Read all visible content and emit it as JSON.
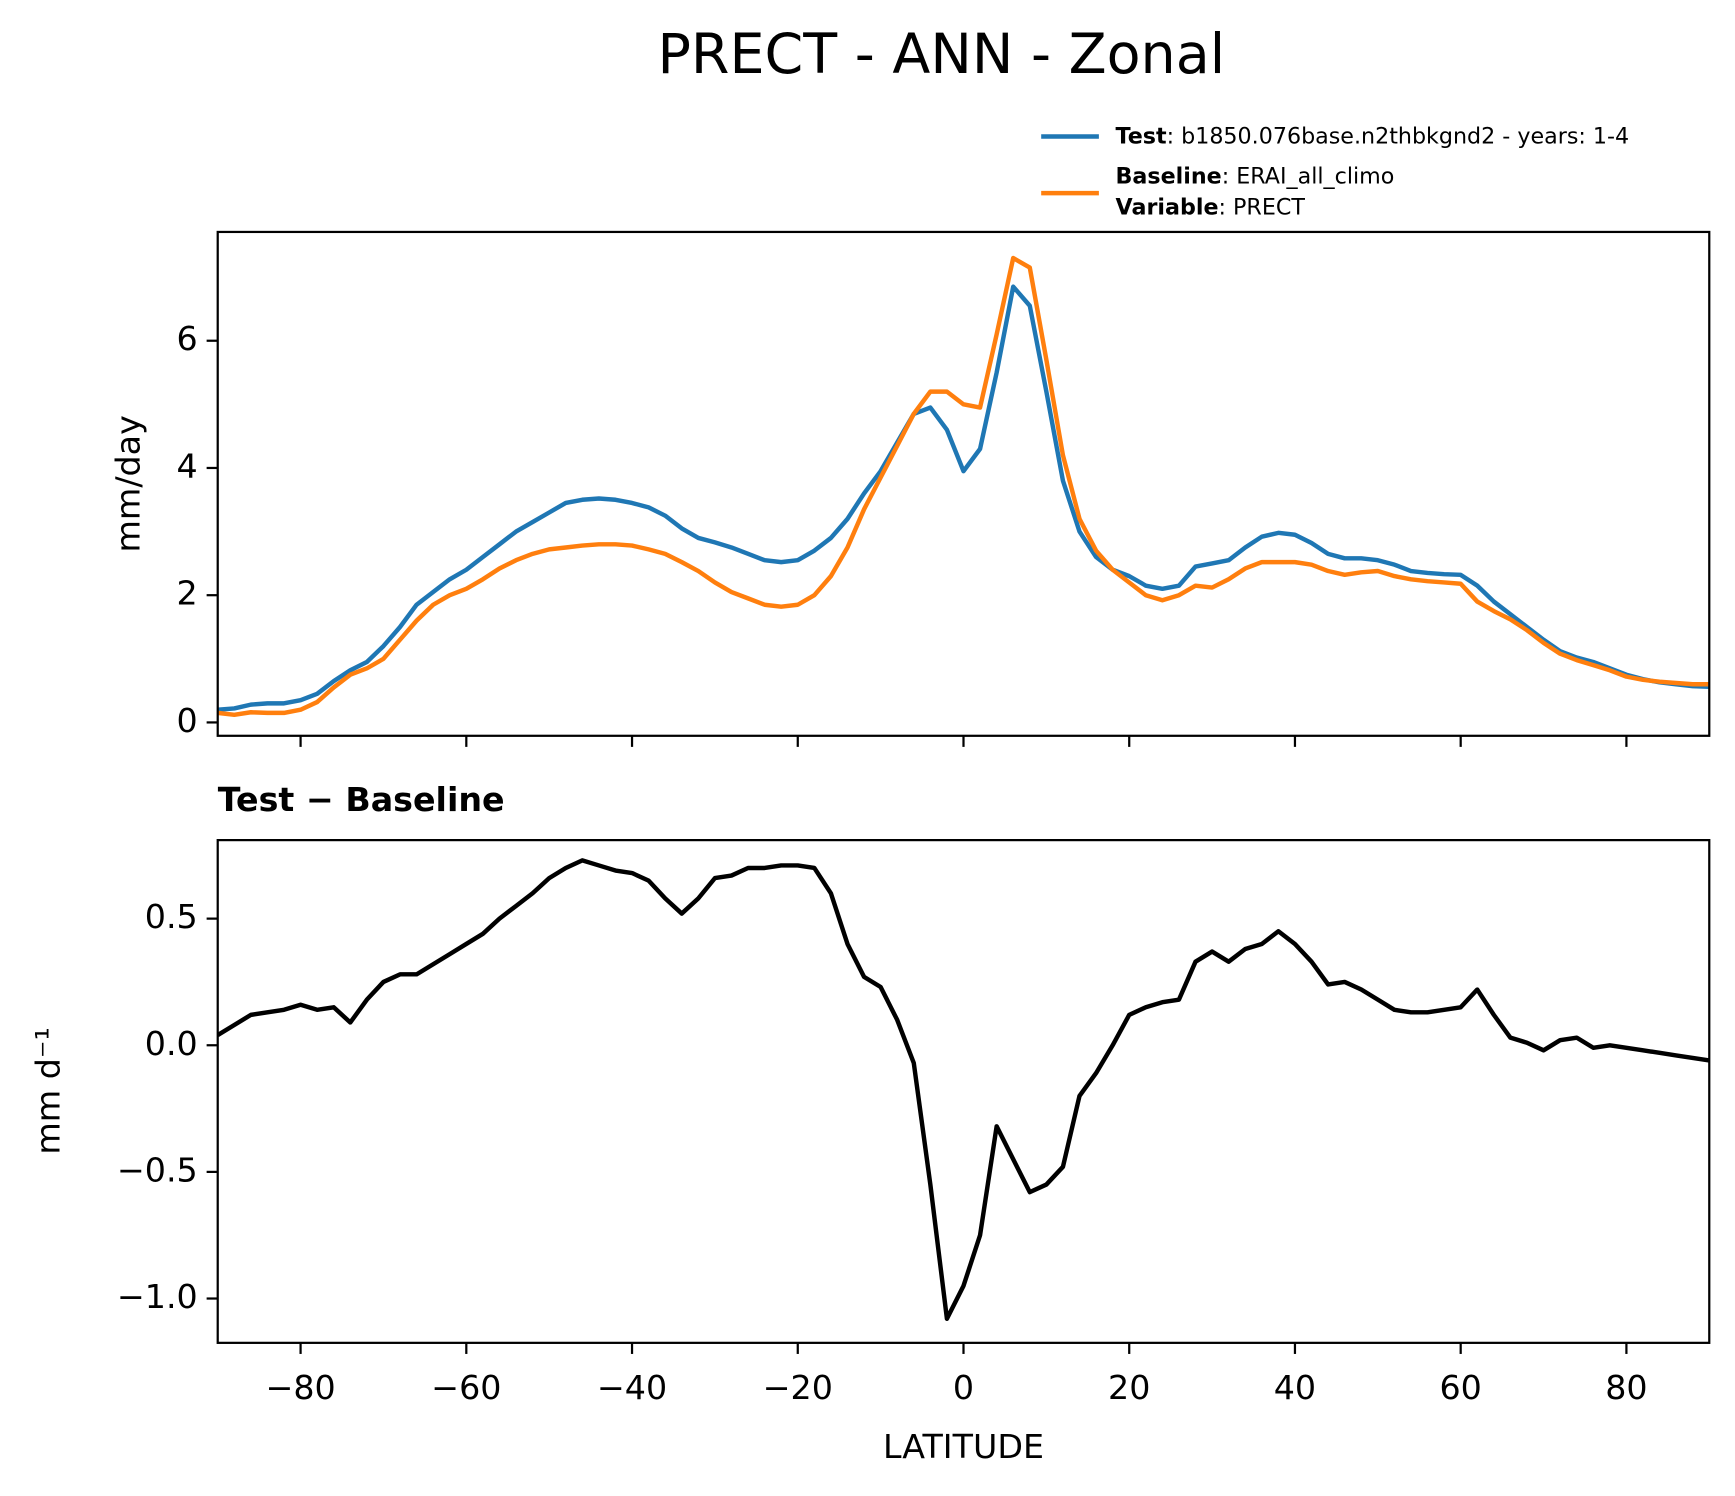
{
  "chart_data": [
    {
      "type": "line",
      "title": "PRECT - ANN - Zonal",
      "ylabel": "mm/day",
      "legend": "upper right",
      "x": [
        -90,
        -88,
        -86,
        -84,
        -82,
        -80,
        -78,
        -76,
        -74,
        -72,
        -70,
        -68,
        -66,
        -64,
        -62,
        -60,
        -58,
        -56,
        -54,
        -52,
        -50,
        -48,
        -46,
        -44,
        -42,
        -40,
        -38,
        -36,
        -34,
        -32,
        -30,
        -28,
        -26,
        -24,
        -22,
        -20,
        -18,
        -16,
        -14,
        -12,
        -10,
        -8,
        -6,
        -4,
        -2,
        0,
        2,
        4,
        6,
        8,
        10,
        12,
        14,
        16,
        18,
        20,
        22,
        24,
        26,
        28,
        30,
        32,
        34,
        36,
        38,
        40,
        42,
        44,
        46,
        48,
        50,
        52,
        54,
        56,
        58,
        60,
        62,
        64,
        66,
        68,
        70,
        72,
        74,
        76,
        78,
        80,
        82,
        84,
        86,
        88,
        90
      ],
      "series": [
        {
          "name": "Test",
          "label": ": b1850.076base.n2thbkgnd2 - years: 1-4",
          "color": "#1f77b4",
          "values": [
            0.2,
            0.22,
            0.28,
            0.3,
            0.3,
            0.35,
            0.45,
            0.65,
            0.82,
            0.95,
            1.2,
            1.5,
            1.85,
            2.05,
            2.25,
            2.4,
            2.6,
            2.8,
            3.0,
            3.15,
            3.3,
            3.45,
            3.5,
            3.52,
            3.5,
            3.45,
            3.38,
            3.25,
            3.05,
            2.9,
            2.83,
            2.75,
            2.65,
            2.55,
            2.52,
            2.55,
            2.7,
            2.9,
            3.2,
            3.6,
            3.95,
            4.4,
            4.85,
            4.95,
            4.6,
            3.95,
            4.3,
            5.5,
            6.85,
            6.55,
            5.2,
            3.8,
            3.0,
            2.6,
            2.4,
            2.3,
            2.15,
            2.1,
            2.15,
            2.45,
            2.5,
            2.55,
            2.75,
            2.92,
            2.98,
            2.95,
            2.82,
            2.65,
            2.58,
            2.58,
            2.55,
            2.48,
            2.38,
            2.35,
            2.33,
            2.32,
            2.15,
            1.9,
            1.7,
            1.5,
            1.3,
            1.12,
            1.02,
            0.95,
            0.85,
            0.75,
            0.68,
            0.63,
            0.6,
            0.57,
            0.56
          ]
        },
        {
          "name": "Baseline",
          "label": ": ERAI_all_climo",
          "color": "#ff7f0e",
          "values": [
            0.15,
            0.12,
            0.16,
            0.15,
            0.15,
            0.2,
            0.32,
            0.55,
            0.75,
            0.85,
            1.0,
            1.3,
            1.6,
            1.85,
            2.0,
            2.1,
            2.25,
            2.42,
            2.55,
            2.65,
            2.72,
            2.75,
            2.78,
            2.8,
            2.8,
            2.78,
            2.72,
            2.65,
            2.52,
            2.38,
            2.2,
            2.05,
            1.95,
            1.85,
            1.82,
            1.85,
            2.0,
            2.3,
            2.75,
            3.35,
            3.85,
            4.35,
            4.85,
            5.2,
            5.2,
            5.0,
            4.95,
            6.1,
            7.3,
            7.15,
            5.7,
            4.2,
            3.2,
            2.7,
            2.4,
            2.2,
            2.0,
            1.92,
            2.0,
            2.15,
            2.12,
            2.25,
            2.42,
            2.52,
            2.52,
            2.52,
            2.48,
            2.38,
            2.32,
            2.36,
            2.38,
            2.3,
            2.25,
            2.22,
            2.2,
            2.18,
            1.9,
            1.75,
            1.62,
            1.45,
            1.25,
            1.08,
            0.98,
            0.9,
            0.82,
            0.72,
            0.67,
            0.64,
            0.62,
            0.6,
            0.6
          ]
        }
      ],
      "variable": {
        "name": "Variable",
        "label": ": PRECT"
      },
      "xlim": [
        -90,
        90
      ],
      "xticks": [
        -80,
        -60,
        -40,
        -20,
        0,
        20,
        40,
        60,
        80
      ],
      "ylim": [
        -0.21,
        7.71
      ],
      "yticks": [
        0,
        2,
        4,
        6
      ]
    },
    {
      "type": "line",
      "title": "Test − Baseline",
      "ylabel": "mm d⁻¹",
      "xlabel": "LATITUDE",
      "x": [
        -90,
        -88,
        -86,
        -84,
        -82,
        -80,
        -78,
        -76,
        -74,
        -72,
        -70,
        -68,
        -66,
        -64,
        -62,
        -60,
        -58,
        -56,
        -54,
        -52,
        -50,
        -48,
        -46,
        -44,
        -42,
        -40,
        -38,
        -36,
        -34,
        -32,
        -30,
        -28,
        -26,
        -24,
        -22,
        -20,
        -18,
        -16,
        -14,
        -12,
        -10,
        -8,
        -6,
        -4,
        -2,
        0,
        2,
        4,
        6,
        8,
        10,
        12,
        14,
        16,
        18,
        20,
        22,
        24,
        26,
        28,
        30,
        32,
        34,
        36,
        38,
        40,
        42,
        44,
        46,
        48,
        50,
        52,
        54,
        56,
        58,
        60,
        62,
        64,
        66,
        68,
        70,
        72,
        74,
        76,
        78,
        80,
        82,
        84,
        86,
        88,
        90
      ],
      "series": [
        {
          "color": "#000000",
          "values": [
            0.04,
            0.08,
            0.12,
            0.13,
            0.14,
            0.16,
            0.14,
            0.15,
            0.09,
            0.18,
            0.25,
            0.28,
            0.28,
            0.32,
            0.36,
            0.4,
            0.44,
            0.5,
            0.55,
            0.6,
            0.66,
            0.7,
            0.73,
            0.71,
            0.69,
            0.68,
            0.65,
            0.58,
            0.52,
            0.58,
            0.66,
            0.67,
            0.7,
            0.7,
            0.71,
            0.71,
            0.7,
            0.6,
            0.4,
            0.27,
            0.23,
            0.1,
            -0.07,
            -0.55,
            -1.08,
            -0.95,
            -0.75,
            -0.32,
            -0.45,
            -0.58,
            -0.55,
            -0.48,
            -0.2,
            -0.11,
            0.0,
            0.12,
            0.15,
            0.17,
            0.18,
            0.33,
            0.37,
            0.33,
            0.38,
            0.4,
            0.45,
            0.4,
            0.33,
            0.24,
            0.25,
            0.22,
            0.18,
            0.14,
            0.13,
            0.13,
            0.14,
            0.15,
            0.22,
            0.12,
            0.03,
            0.01,
            -0.02,
            0.02,
            0.03,
            -0.01,
            0.0,
            -0.01,
            -0.02,
            -0.03,
            -0.04,
            -0.05,
            -0.06
          ]
        }
      ],
      "xlim": [
        -90,
        90
      ],
      "xticks": [
        {
          "value": -80,
          "label": "−80"
        },
        {
          "value": -60,
          "label": "−60"
        },
        {
          "value": -40,
          "label": "−40"
        },
        {
          "value": -20,
          "label": "−20"
        },
        0,
        20,
        40,
        60,
        80
      ],
      "ylim": [
        -1.175,
        0.81
      ],
      "yticks": [
        {
          "value": -1.0,
          "label": "−1.0"
        },
        {
          "value": -0.5,
          "label": "−0.5"
        },
        {
          "value": 0.0,
          "label": "0.0"
        },
        0.5
      ]
    }
  ]
}
